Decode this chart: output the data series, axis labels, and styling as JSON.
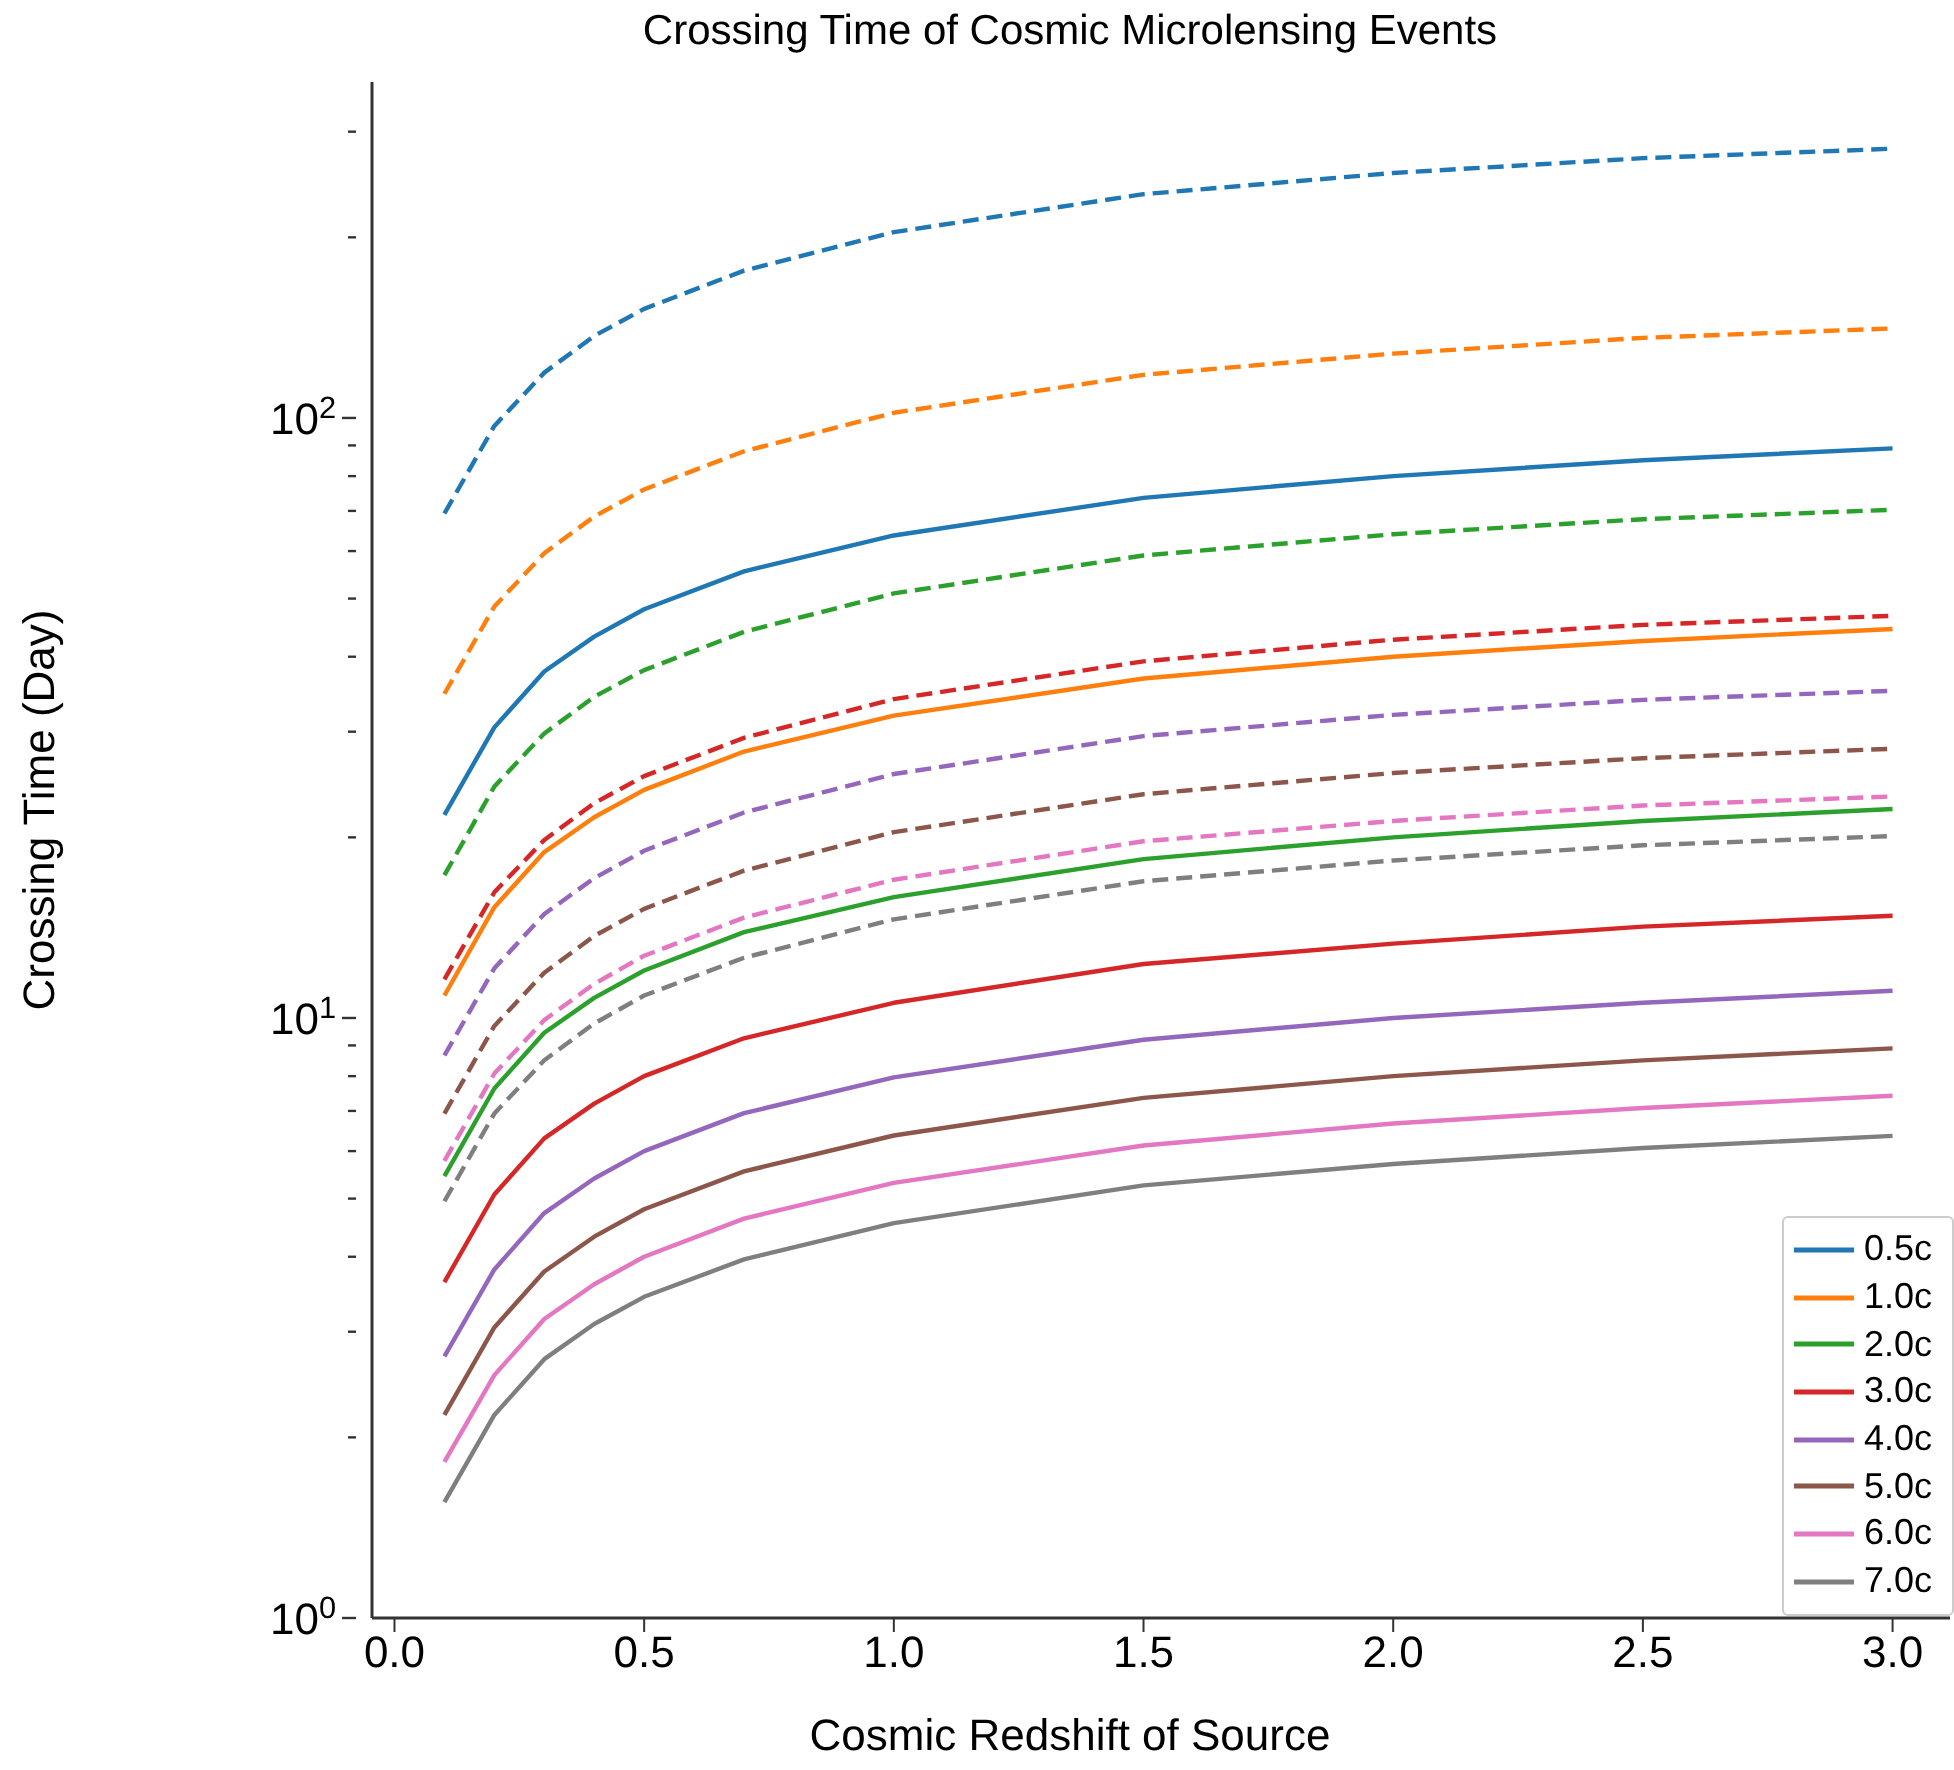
{
  "chart_data": {
    "type": "line",
    "title": "Crossing Time of Cosmic Microlensing Events",
    "xlabel": "Cosmic Redshift of Source",
    "ylabel": "Crossing Time (Day)",
    "x": [
      0.1,
      0.2,
      0.3,
      0.4,
      0.5,
      0.7,
      1.0,
      1.5,
      2.0,
      2.5,
      3.0
    ],
    "series": [
      {
        "name": "0.5c",
        "color": "#1f77b4",
        "line_style": "solid",
        "values": [
          21.8,
          30.5,
          37.8,
          43.2,
          48,
          55.5,
          63.7,
          73.6,
          80,
          85,
          89
        ]
      },
      {
        "name": "1.0c",
        "color": "#ff7f0e",
        "line_style": "solid",
        "values": [
          10.9,
          15.3,
          18.9,
          21.6,
          24,
          27.8,
          31.9,
          36.8,
          40,
          42.5,
          44.5
        ]
      },
      {
        "name": "2.0c",
        "color": "#2ca02c",
        "line_style": "solid",
        "values": [
          5.45,
          7.63,
          9.45,
          10.8,
          12,
          13.9,
          15.9,
          18.4,
          20,
          21.3,
          22.3
        ]
      },
      {
        "name": "3.0c",
        "color": "#d62728",
        "line_style": "solid",
        "values": [
          3.63,
          5.08,
          6.3,
          7.2,
          8,
          9.25,
          10.6,
          12.3,
          13.3,
          14.2,
          14.8
        ]
      },
      {
        "name": "4.0c",
        "color": "#9467bd",
        "line_style": "solid",
        "values": [
          2.73,
          3.81,
          4.73,
          5.4,
          6,
          6.94,
          7.96,
          9.2,
          10,
          10.6,
          11.1
        ]
      },
      {
        "name": "5.0c",
        "color": "#8c564b",
        "line_style": "solid",
        "values": [
          2.18,
          3.05,
          3.78,
          4.32,
          4.8,
          5.55,
          6.37,
          7.36,
          8,
          8.5,
          8.9
        ]
      },
      {
        "name": "6.0c",
        "color": "#e377c2",
        "line_style": "solid",
        "values": [
          1.82,
          2.54,
          3.15,
          3.6,
          4,
          4.63,
          5.31,
          6.13,
          6.67,
          7.08,
          7.42
        ]
      },
      {
        "name": "7.0c",
        "color": "#7f7f7f",
        "line_style": "solid",
        "values": [
          1.56,
          2.18,
          2.7,
          3.09,
          3.43,
          3.96,
          4.55,
          5.26,
          5.71,
          6.07,
          6.36
        ]
      },
      {
        "color": "#1f77b4",
        "line_style": "dashed",
        "values": [
          69.3,
          97,
          119,
          137,
          152,
          176,
          204,
          236,
          256,
          271,
          281
        ]
      },
      {
        "color": "#ff7f0e",
        "line_style": "dashed",
        "values": [
          34.7,
          48.5,
          59.5,
          68.5,
          76,
          88,
          102,
          118,
          128,
          136,
          141
        ]
      },
      {
        "color": "#2ca02c",
        "line_style": "dashed",
        "values": [
          17.3,
          24.3,
          29.8,
          34.3,
          38,
          44,
          51,
          59,
          64,
          67.8,
          70.3
        ]
      },
      {
        "color": "#d62728",
        "line_style": "dashed",
        "values": [
          11.6,
          16.2,
          19.8,
          22.8,
          25.3,
          29.3,
          34,
          39.3,
          42.7,
          45.2,
          46.8
        ]
      },
      {
        "color": "#9467bd",
        "line_style": "dashed",
        "values": [
          8.66,
          12.1,
          14.9,
          17.1,
          19,
          22,
          25.5,
          29.5,
          32,
          33.9,
          35.1
        ]
      },
      {
        "color": "#8c564b",
        "line_style": "dashed",
        "values": [
          6.93,
          9.7,
          11.9,
          13.7,
          15.2,
          17.6,
          20.4,
          23.6,
          25.6,
          27.1,
          28.1
        ]
      },
      {
        "color": "#e377c2",
        "line_style": "dashed",
        "values": [
          5.78,
          8.08,
          9.92,
          11.4,
          12.7,
          14.7,
          17,
          19.7,
          21.3,
          22.6,
          23.4
        ]
      },
      {
        "color": "#7f7f7f",
        "line_style": "dashed",
        "values": [
          4.95,
          6.93,
          8.5,
          9.79,
          10.9,
          12.6,
          14.6,
          16.9,
          18.3,
          19.4,
          20.1
        ]
      }
    ],
    "log": "y",
    "grid": false,
    "legend": "bottom right",
    "marker": "none",
    "xlim": [
      -0.045,
      3.115
    ],
    "xticks": [
      {
        "value": 0,
        "label": "0.0"
      },
      0.5,
      {
        "value": 1,
        "label": "1.0"
      },
      1.5,
      {
        "value": 2,
        "label": "2.0"
      },
      2.5,
      {
        "value": 3,
        "label": "3.0"
      }
    ],
    "ylim": [
      1,
      363
    ],
    "yticks": [
      {
        "value": 1,
        "label": "10$^{0}$"
      },
      {
        "value": 2,
        "label": null
      },
      {
        "value": 3,
        "label": null
      },
      {
        "value": 4,
        "label": null
      },
      {
        "value": 5,
        "label": null
      },
      {
        "value": 6,
        "label": null
      },
      {
        "value": 7,
        "label": null
      },
      {
        "value": 8,
        "label": null
      },
      {
        "value": 9,
        "label": null
      },
      {
        "value": 10,
        "label": "10$^{1}$"
      },
      {
        "value": 20,
        "label": null
      },
      {
        "value": 30,
        "label": null
      },
      {
        "value": 40,
        "label": null
      },
      {
        "value": 50,
        "label": null
      },
      {
        "value": 60,
        "label": null
      },
      {
        "value": 70,
        "label": null
      },
      {
        "value": 80,
        "label": null
      },
      {
        "value": 90,
        "label": null
      },
      {
        "value": 100,
        "label": "10$^{2}$"
      },
      {
        "value": 200,
        "label": null
      },
      {
        "value": 300,
        "label": null
      }
    ]
  }
}
